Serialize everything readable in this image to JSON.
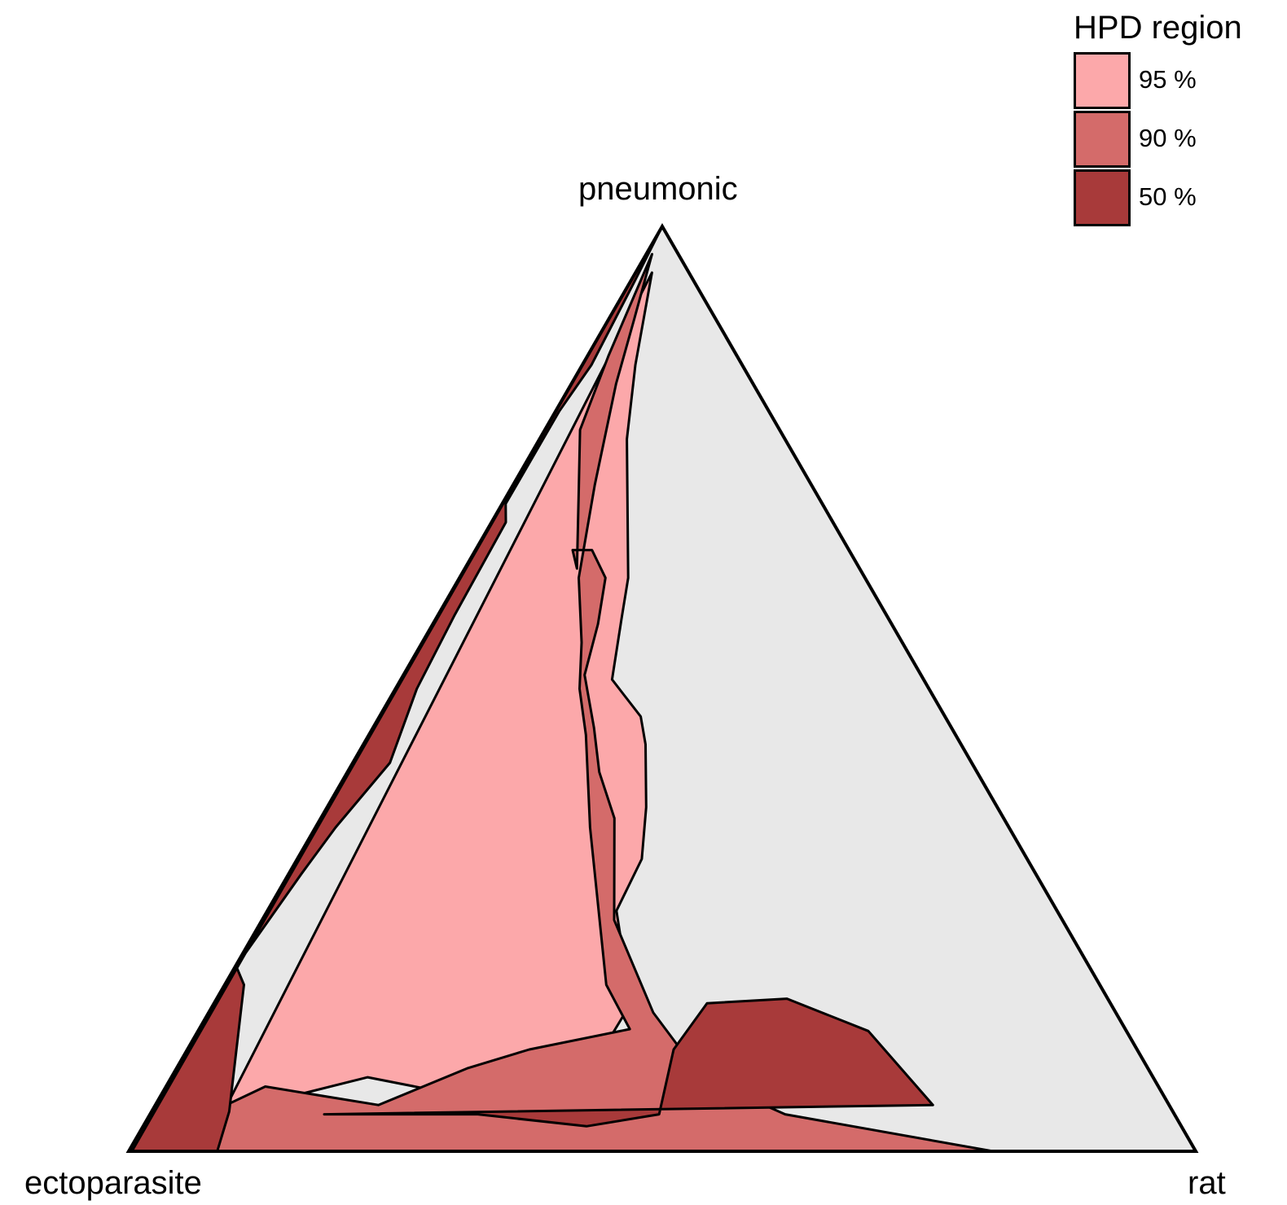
{
  "chart_data": {
    "type": "ternary-contour",
    "vertices": {
      "top": "pneumonic",
      "left": "ectoparasite",
      "right": "rat"
    },
    "legend": {
      "title": "HPD region",
      "placement": "top-right",
      "items": [
        {
          "label": "95 %",
          "level": 0.95,
          "color": "#FCA8AA"
        },
        {
          "label": "90 %",
          "level": 0.9,
          "color": "#D46B6A"
        },
        {
          "label": "50 %",
          "level": 0.5,
          "color": "#A83A3A"
        }
      ]
    },
    "background_color": "#E8E8E8",
    "regions": [
      {
        "level": 0.95,
        "points": [
          [
            0.996,
            0.0
          ],
          [
            0.9,
            0.05
          ],
          [
            0.8,
            0.08
          ],
          [
            0.7,
            0.06
          ],
          [
            0.58,
            0.075
          ],
          [
            0.535,
            0.16
          ],
          [
            0.558,
            0.26
          ],
          [
            0.528,
            0.316
          ],
          [
            0.524,
            0.372
          ],
          [
            0.528,
            0.44
          ],
          [
            0.538,
            0.47
          ],
          [
            0.596,
            0.51
          ],
          [
            0.59,
            0.575
          ],
          [
            0.584,
            0.62
          ],
          [
            0.644,
            0.77
          ],
          [
            0.668,
            0.85
          ],
          [
            0.692,
            0.95
          ],
          [
            0.93,
            0.0
          ]
        ]
      },
      {
        "level": 0.9,
        "points": [
          [
            1.0,
            0.0
          ],
          [
            0.9,
            0.07
          ],
          [
            0.78,
            0.05
          ],
          [
            0.7,
            0.09
          ],
          [
            0.64,
            0.11
          ],
          [
            0.535,
            0.132
          ],
          [
            0.564,
            0.18
          ],
          [
            0.604,
            0.35
          ],
          [
            0.63,
            0.45
          ],
          [
            0.655,
            0.5
          ],
          [
            0.668,
            0.55
          ],
          [
            0.706,
            0.62
          ],
          [
            0.726,
            0.72
          ],
          [
            0.754,
            0.83
          ],
          [
            0.762,
            0.9
          ],
          [
            0.818,
            0.97
          ],
          [
            0.86,
            0.86
          ],
          [
            0.85,
            0.78
          ],
          [
            0.77,
            0.71
          ],
          [
            0.716,
            0.63
          ],
          [
            0.74,
            0.65
          ],
          [
            0.688,
            0.65
          ],
          [
            0.64,
            0.62
          ],
          [
            0.64,
            0.57
          ],
          [
            0.65,
            0.515
          ],
          [
            0.618,
            0.458
          ],
          [
            0.6,
            0.41
          ],
          [
            0.57,
            0.36
          ],
          [
            0.56,
            0.25
          ],
          [
            0.51,
            0.15
          ],
          [
            0.46,
            0.08
          ],
          [
            0.38,
            0.04
          ],
          [
            0.19,
            0.0
          ],
          [
            0.95,
            0.0
          ]
        ]
      },
      {
        "level": 0.5,
        "points": [
          [
            0.838,
            1.0
          ],
          [
            0.936,
            0.94
          ],
          [
            0.943,
            0.85
          ],
          [
            0.983,
            0.8
          ],
          [
            0.989,
            0.7
          ],
          [
            0.958,
            0.68
          ],
          [
            0.963,
            0.58
          ],
          [
            0.96,
            0.5
          ],
          [
            0.94,
            0.42
          ],
          [
            0.971,
            0.35
          ],
          [
            0.983,
            0.3
          ],
          [
            0.999,
            0.2
          ],
          [
            0.978,
            0.18
          ],
          [
            0.924,
            0.043
          ],
          [
            0.917,
            0.0
          ],
          [
            0.997,
            0.0
          ]
        ]
      },
      {
        "level": 0.5,
        "points": [
          [
            0.83,
            0.04
          ],
          [
            0.68,
            0.04
          ],
          [
            0.573,
            0.027
          ],
          [
            0.503,
            0.04
          ],
          [
            0.488,
            0.11
          ],
          [
            0.45,
            0.16
          ],
          [
            0.36,
            0.165
          ],
          [
            0.278,
            0.13
          ],
          [
            0.233,
            0.05
          ]
        ]
      }
    ]
  }
}
